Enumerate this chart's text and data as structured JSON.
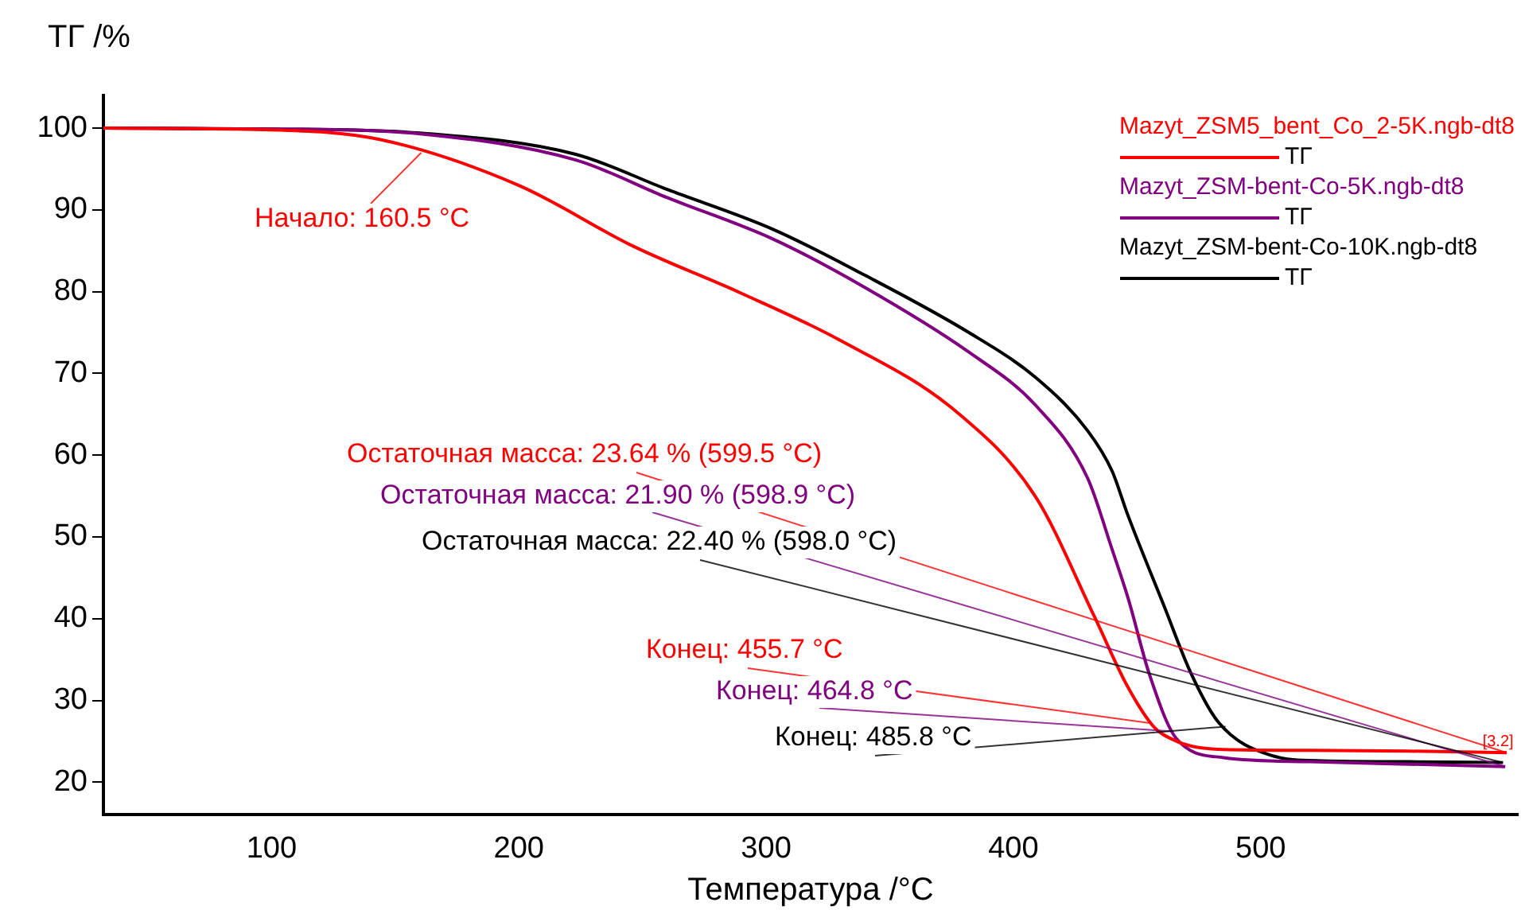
{
  "chart_data": {
    "type": "line",
    "ylabel": "ТГ /%",
    "xlabel": "Температура /°C",
    "xlim": [
      32,
      604
    ],
    "xticks": [
      100,
      200,
      300,
      400,
      500
    ],
    "ylim": [
      16,
      104
    ],
    "yticks": [
      20,
      30,
      40,
      50,
      60,
      70,
      80,
      90,
      100
    ],
    "grid": false,
    "legend": "top right",
    "marker": "none",
    "line_style": "solid",
    "series": [
      {
        "name": "Mazyt_ZSM5_bent_Co_2-5K.ngb-dt8",
        "color": "#ff0000",
        "x": [
          32,
          100,
          144,
          200,
          246,
          290,
          329,
          377,
          409,
          433,
          446,
          457,
          466,
          472,
          485,
          520,
          560,
          599.5
        ],
        "values": [
          100,
          99.8,
          98.6,
          93,
          85.6,
          79.8,
          74.2,
          65.3,
          54.9,
          40.1,
          31.8,
          26.7,
          25,
          24.4,
          24,
          23.9,
          23.8,
          23.6
        ]
      },
      {
        "name": "Mazyt_ZSM-bent-Co-5K.ngb-dt8",
        "color": "#800080",
        "x": [
          32,
          100,
          160,
          223,
          260,
          303,
          340,
          382,
          409,
          430,
          440,
          446.4,
          455,
          466,
          485,
          520,
          560,
          598.9
        ],
        "values": [
          100,
          99.9,
          99.3,
          96.1,
          91.5,
          86.4,
          80.5,
          72.6,
          66.1,
          57.2,
          48.4,
          42.5,
          33.2,
          25.3,
          23,
          22.5,
          22.2,
          21.9
        ]
      },
      {
        "name": "Mazyt_ZSM-bent-Co-10K.ngb-dt8",
        "color": "#000000",
        "x": [
          32,
          100,
          160,
          223,
          260,
          303,
          340,
          382,
          409,
          430,
          440,
          446,
          461,
          472,
          483,
          504,
          525,
          560,
          598
        ],
        "values": [
          100,
          99.9,
          99.4,
          96.8,
          92.5,
          87.6,
          82,
          75,
          69.5,
          63,
          58,
          52.9,
          41.5,
          33.2,
          27.3,
          23.3,
          22.6,
          22.5,
          22.4
        ]
      }
    ],
    "annotations": [
      {
        "text": "Начало: 160.5 °C",
        "x": 160.5,
        "y": 97
      },
      {
        "text": "Остаточная масса: 23.64 % (599.5 °C)",
        "x": 599.5,
        "y": 23.6
      },
      {
        "text": "Остаточная масса: 21.90 % (598.9 °C)",
        "x": 598.9,
        "y": 21.9
      },
      {
        "text": "Остаточная масса: 22.40 % (598.0 °C)",
        "x": 598,
        "y": 22.4
      },
      {
        "text": "Конец: 455.7 °C",
        "x": 455.7,
        "y": 27.2
      },
      {
        "text": "Конец: 464.8 °C",
        "x": 464.8,
        "y": 26.2
      },
      {
        "text": "Конец: 485.8 °C",
        "x": 485.8,
        "y": 26.8
      },
      {
        "text": "[3.2]",
        "x": 596,
        "y": 23.6
      },
      "ТГ",
      "ТГ",
      "ТГ"
    ]
  }
}
